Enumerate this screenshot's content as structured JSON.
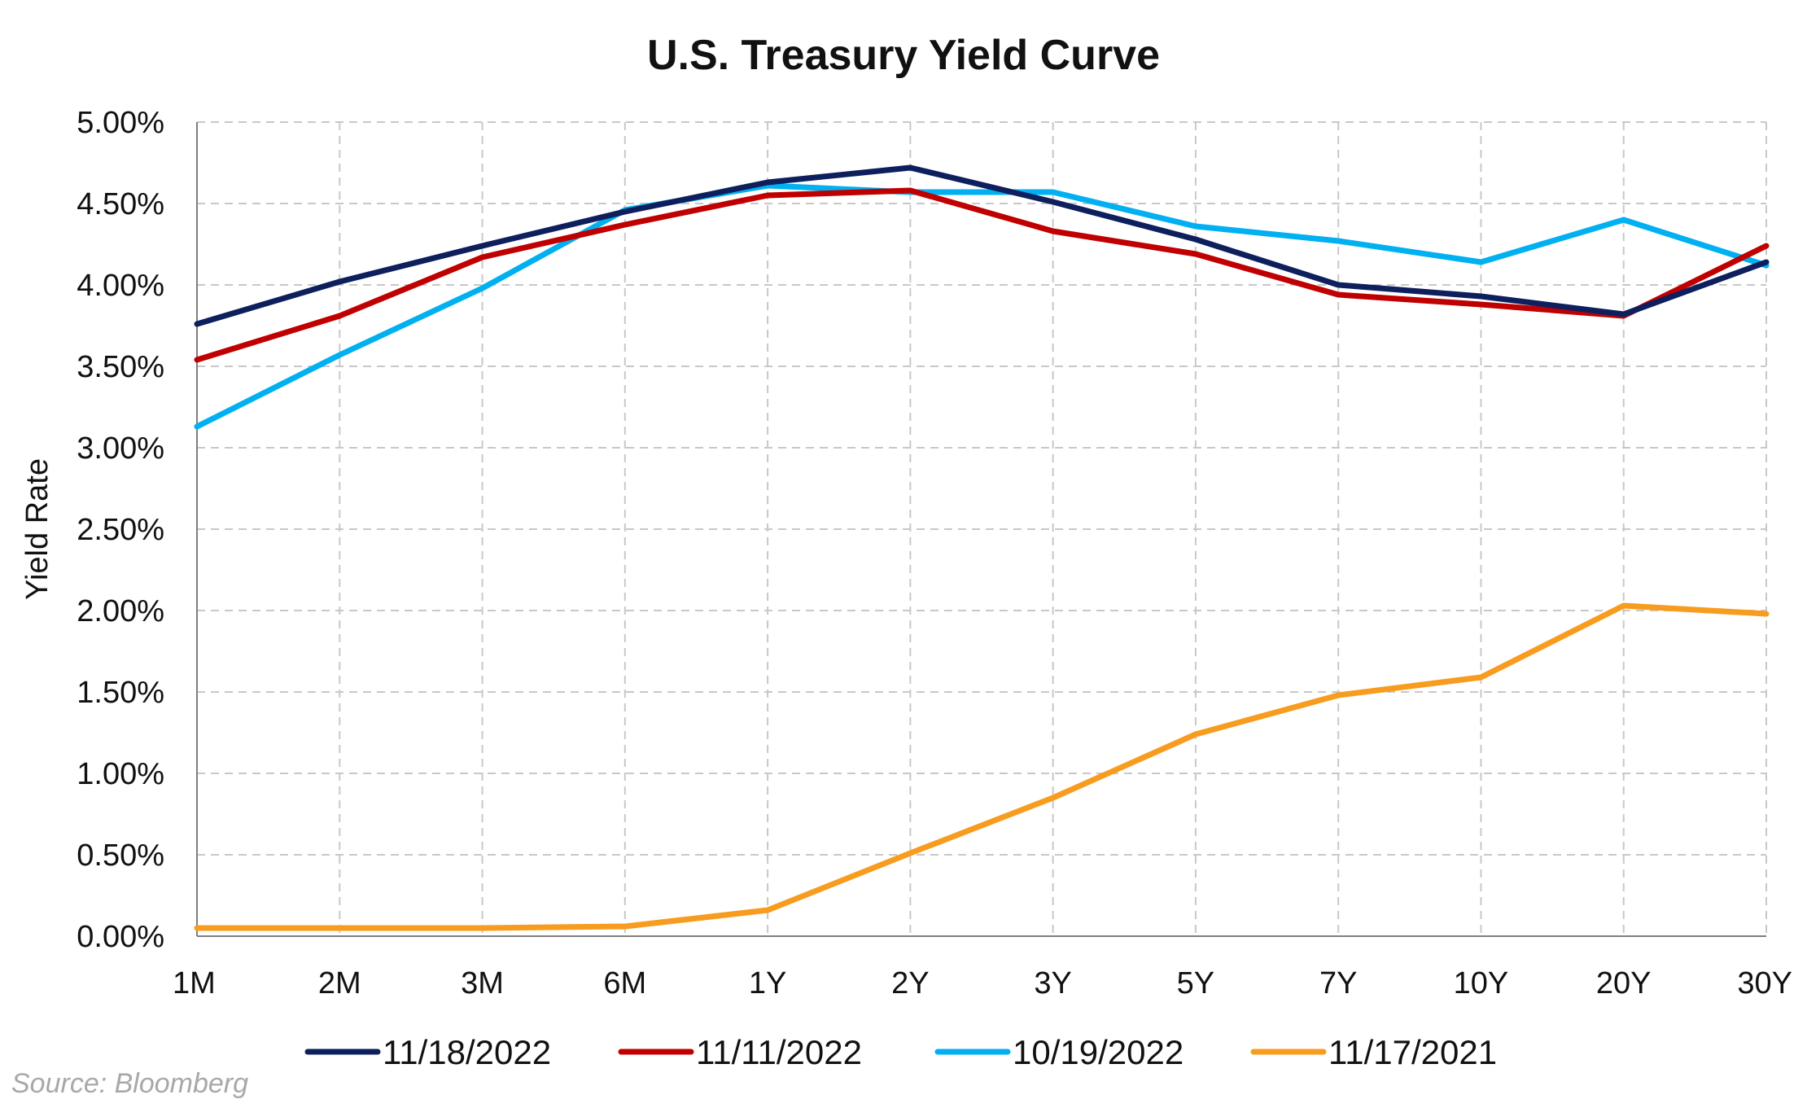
{
  "chart_data": {
    "type": "line",
    "title": "U.S. Treasury Yield Curve",
    "xlabel": "",
    "ylabel": "Yield Rate",
    "ylim": [
      0,
      5
    ],
    "yticks": [
      "0.00%",
      "0.50%",
      "1.00%",
      "1.50%",
      "2.00%",
      "2.50%",
      "3.00%",
      "3.50%",
      "4.00%",
      "4.50%",
      "5.00%"
    ],
    "categories": [
      "1M",
      "2M",
      "3M",
      "6M",
      "1Y",
      "2Y",
      "3Y",
      "5Y",
      "7Y",
      "10Y",
      "20Y",
      "30Y"
    ],
    "grid": true,
    "legend_position": "bottom",
    "series": [
      {
        "name": "11/18/2022",
        "color": "#0d1f5c",
        "values": [
          3.76,
          4.02,
          4.24,
          4.45,
          4.63,
          4.72,
          4.51,
          4.28,
          4.0,
          3.93,
          3.82,
          4.14
        ]
      },
      {
        "name": "11/11/2022",
        "color": "#c00000",
        "values": [
          3.54,
          3.81,
          4.17,
          4.37,
          4.55,
          4.58,
          4.33,
          4.19,
          3.94,
          3.88,
          3.81,
          4.24
        ]
      },
      {
        "name": "10/19/2022",
        "color": "#00b0f0",
        "values": [
          3.13,
          3.57,
          3.98,
          4.46,
          4.61,
          4.57,
          4.57,
          4.36,
          4.27,
          4.14,
          4.4,
          4.12
        ]
      },
      {
        "name": "11/17/2021",
        "color": "#f79c1e",
        "values": [
          0.05,
          0.05,
          0.05,
          0.06,
          0.16,
          0.51,
          0.85,
          1.24,
          1.48,
          1.59,
          2.03,
          1.98
        ]
      }
    ]
  },
  "source": "Source: Bloomberg"
}
